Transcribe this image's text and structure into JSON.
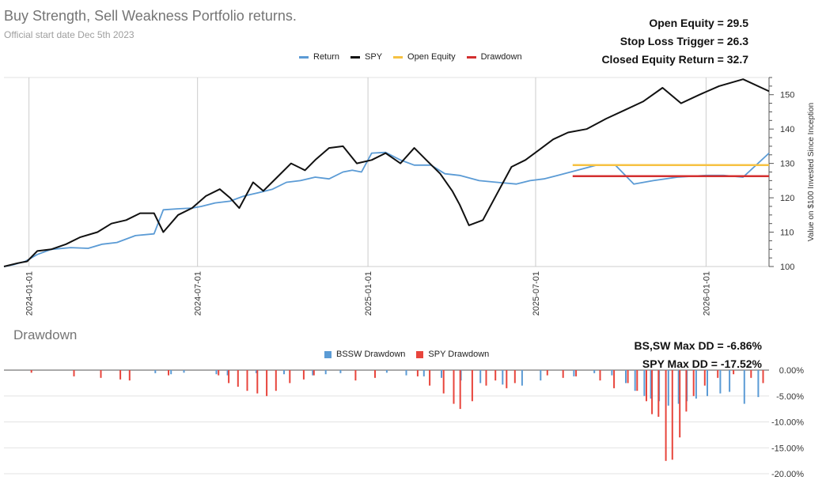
{
  "header": {
    "title": "Buy Strength, Sell Weakness Portfolio returns.",
    "subtitle": "Official start date Dec 5th 2023"
  },
  "stats": {
    "open_equity_label": "Open Equity =",
    "open_equity_value": "29.5",
    "stop_loss_label": "Stop Loss Trigger =",
    "stop_loss_value": "26.3",
    "closed_equity_label": "Closed Equity Return =",
    "closed_equity_value": "32.7"
  },
  "drawdown_panel": {
    "title": "Drawdown",
    "bssw_max_label": "BS,SW Max DD =",
    "bssw_max_value": "-6.86%",
    "spy_max_label": "SPY Max DD =",
    "spy_max_value": "-17.52%"
  },
  "colors": {
    "return": "#5b9bd5",
    "spy": "#111111",
    "open_equity": "#f6c242",
    "drawdown_line": "#d32f2f",
    "bssw_bar": "#5b9bd5",
    "spy_bar": "#e8453c",
    "grid": "#cccccc"
  },
  "chart_data": [
    {
      "type": "line",
      "ylabel": "Value on $100 Invested Since Inception",
      "ylim": [
        100,
        155
      ],
      "yticks": [
        100,
        110,
        120,
        130,
        140,
        150
      ],
      "xlim": [
        "2023-12-05",
        "2026-03-10"
      ],
      "xticks": [
        "2024-01-01",
        "2024-07-01",
        "2025-01-01",
        "2025-07-01",
        "2026-01-01"
      ],
      "legend_position": "top-center",
      "legend": [
        "Return",
        "SPY",
        "Open Equity",
        "Drawdown"
      ],
      "series": [
        {
          "name": "Return",
          "color_key": "return",
          "points": [
            [
              "2023-12-05",
              100
            ],
            [
              "2023-12-15",
              100.5
            ],
            [
              "2023-12-28",
              101.5
            ],
            [
              "2024-01-10",
              103.5
            ],
            [
              "2024-01-25",
              105
            ],
            [
              "2024-02-15",
              105.5
            ],
            [
              "2024-03-05",
              105.3
            ],
            [
              "2024-03-20",
              106.5
            ],
            [
              "2024-04-05",
              107
            ],
            [
              "2024-04-25",
              109
            ],
            [
              "2024-05-15",
              109.5
            ],
            [
              "2024-05-25",
              116.5
            ],
            [
              "2024-06-10",
              116.8
            ],
            [
              "2024-06-25",
              117
            ],
            [
              "2024-07-05",
              117.5
            ],
            [
              "2024-07-20",
              118.5
            ],
            [
              "2024-08-05",
              119
            ],
            [
              "2024-08-20",
              120.5
            ],
            [
              "2024-09-05",
              121.5
            ],
            [
              "2024-09-20",
              122.5
            ],
            [
              "2024-10-05",
              124.5
            ],
            [
              "2024-10-20",
              125
            ],
            [
              "2024-11-05",
              126
            ],
            [
              "2024-11-20",
              125.5
            ],
            [
              "2024-12-05",
              127.5
            ],
            [
              "2024-12-15",
              128
            ],
            [
              "2024-12-25",
              127.5
            ],
            [
              "2025-01-05",
              133
            ],
            [
              "2025-01-20",
              133.2
            ],
            [
              "2025-02-05",
              131
            ],
            [
              "2025-02-20",
              129.5
            ],
            [
              "2025-03-10",
              129.5
            ],
            [
              "2025-03-25",
              127
            ],
            [
              "2025-04-10",
              126.5
            ],
            [
              "2025-05-01",
              125
            ],
            [
              "2025-05-20",
              124.5
            ],
            [
              "2025-06-10",
              124
            ],
            [
              "2025-06-25",
              125
            ],
            [
              "2025-07-10",
              125.5
            ],
            [
              "2025-07-25",
              126.5
            ],
            [
              "2025-08-15",
              128
            ],
            [
              "2025-09-05",
              129.5
            ],
            [
              "2025-09-25",
              129.5
            ],
            [
              "2025-10-15",
              124
            ],
            [
              "2025-11-05",
              125
            ],
            [
              "2025-12-01",
              126
            ],
            [
              "2026-01-01",
              126.5
            ],
            [
              "2026-01-20",
              126.5
            ],
            [
              "2026-02-10",
              126
            ],
            [
              "2026-03-10",
              133
            ]
          ]
        },
        {
          "name": "SPY",
          "color_key": "spy",
          "points": [
            [
              "2023-12-05",
              100
            ],
            [
              "2023-12-20",
              101
            ],
            [
              "2023-12-30",
              101.5
            ],
            [
              "2024-01-10",
              104.5
            ],
            [
              "2024-01-25",
              105
            ],
            [
              "2024-02-10",
              106.5
            ],
            [
              "2024-02-25",
              108.5
            ],
            [
              "2024-03-15",
              110
            ],
            [
              "2024-03-30",
              112.5
            ],
            [
              "2024-04-15",
              113.5
            ],
            [
              "2024-04-30",
              115.5
            ],
            [
              "2024-05-15",
              115.5
            ],
            [
              "2024-05-25",
              110
            ],
            [
              "2024-06-10",
              115
            ],
            [
              "2024-06-25",
              117
            ],
            [
              "2024-07-10",
              120.5
            ],
            [
              "2024-07-25",
              122.5
            ],
            [
              "2024-08-05",
              120
            ],
            [
              "2024-08-15",
              117
            ],
            [
              "2024-08-30",
              124.5
            ],
            [
              "2024-09-10",
              122
            ],
            [
              "2024-09-25",
              126
            ],
            [
              "2024-10-10",
              130
            ],
            [
              "2024-10-25",
              128
            ],
            [
              "2024-11-05",
              131
            ],
            [
              "2024-11-20",
              134.5
            ],
            [
              "2024-12-05",
              135
            ],
            [
              "2024-12-20",
              130
            ],
            [
              "2025-01-05",
              131
            ],
            [
              "2025-01-20",
              133
            ],
            [
              "2025-02-05",
              130
            ],
            [
              "2025-02-20",
              134.5
            ],
            [
              "2025-03-05",
              131
            ],
            [
              "2025-03-20",
              127
            ],
            [
              "2025-04-02",
              122
            ],
            [
              "2025-04-10",
              118
            ],
            [
              "2025-04-20",
              112
            ],
            [
              "2025-05-05",
              113.5
            ],
            [
              "2025-05-20",
              121
            ],
            [
              "2025-06-05",
              129
            ],
            [
              "2025-06-20",
              131
            ],
            [
              "2025-07-05",
              134
            ],
            [
              "2025-07-20",
              137
            ],
            [
              "2025-08-05",
              139
            ],
            [
              "2025-08-25",
              140
            ],
            [
              "2025-09-15",
              143
            ],
            [
              "2025-10-05",
              145.5
            ],
            [
              "2025-10-25",
              148
            ],
            [
              "2025-11-15",
              152
            ],
            [
              "2025-12-05",
              147.5
            ],
            [
              "2025-12-25",
              150
            ],
            [
              "2026-01-15",
              152.5
            ],
            [
              "2026-02-10",
              154.5
            ],
            [
              "2026-03-10",
              151
            ]
          ]
        },
        {
          "name": "Open Equity",
          "color_key": "open_equity",
          "points": [
            [
              "2025-08-10",
              129.5
            ],
            [
              "2026-03-10",
              129.5
            ]
          ]
        },
        {
          "name": "Drawdown",
          "color_key": "drawdown_line",
          "points": [
            [
              "2025-08-10",
              126.3
            ],
            [
              "2026-03-10",
              126.3
            ]
          ]
        }
      ]
    },
    {
      "type": "bar",
      "ylim": [
        -20,
        0
      ],
      "yticks": [
        "0.00%",
        "-5.00%",
        "-10.00%",
        "-15.00%",
        "-20.00%"
      ],
      "legend_position": "top-center",
      "legend": [
        "BSSW Drawdown",
        "SPY Drawdown"
      ],
      "series": [
        {
          "name": "BSSW Drawdown",
          "color_key": "bssw_bar",
          "points": [
            [
              "2024-05-15",
              -0.6
            ],
            [
              "2024-06-01",
              -0.8
            ],
            [
              "2024-06-15",
              -0.5
            ],
            [
              "2024-07-20",
              -0.8
            ],
            [
              "2024-08-01",
              -1
            ],
            [
              "2024-09-01",
              -0.6
            ],
            [
              "2024-10-01",
              -0.8
            ],
            [
              "2024-11-01",
              -1
            ],
            [
              "2024-11-15",
              -0.8
            ],
            [
              "2024-12-01",
              -0.6
            ],
            [
              "2025-01-20",
              -0.5
            ],
            [
              "2025-02-10",
              -1
            ],
            [
              "2025-03-01",
              -1.2
            ],
            [
              "2025-03-20",
              -1.5
            ],
            [
              "2025-04-10",
              -2
            ],
            [
              "2025-05-01",
              -2.5
            ],
            [
              "2025-05-25",
              -2.8
            ],
            [
              "2025-06-15",
              -3
            ],
            [
              "2025-07-05",
              -2
            ],
            [
              "2025-08-10",
              -1.2
            ],
            [
              "2025-09-01",
              -0.6
            ],
            [
              "2025-09-20",
              -1
            ],
            [
              "2025-10-05",
              -2.5
            ],
            [
              "2025-10-15",
              -4
            ],
            [
              "2025-10-25",
              -5
            ],
            [
              "2025-11-01",
              -5.5
            ],
            [
              "2025-11-10",
              -6
            ],
            [
              "2025-11-20",
              -6.86
            ],
            [
              "2025-12-01",
              -6.5
            ],
            [
              "2025-12-10",
              -6
            ],
            [
              "2025-12-20",
              -5.5
            ],
            [
              "2026-01-01",
              -5
            ],
            [
              "2026-01-15",
              -4.5
            ],
            [
              "2026-01-25",
              -4.2
            ],
            [
              "2026-02-10",
              -6.5
            ],
            [
              "2026-02-25",
              -5.2
            ]
          ]
        },
        {
          "name": "SPY Drawdown",
          "color_key": "spy_bar",
          "points": [
            [
              "2024-01-05",
              -0.5
            ],
            [
              "2024-02-20",
              -1.2
            ],
            [
              "2024-03-20",
              -1.5
            ],
            [
              "2024-04-10",
              -1.8
            ],
            [
              "2024-04-20",
              -2
            ],
            [
              "2024-06-01",
              -1
            ],
            [
              "2024-07-25",
              -1
            ],
            [
              "2024-08-05",
              -2.5
            ],
            [
              "2024-08-15",
              -3.2
            ],
            [
              "2024-08-25",
              -4
            ],
            [
              "2024-09-05",
              -4.5
            ],
            [
              "2024-09-15",
              -5
            ],
            [
              "2024-09-25",
              -4
            ],
            [
              "2024-10-10",
              -2.5
            ],
            [
              "2024-10-25",
              -1.8
            ],
            [
              "2024-11-05",
              -1
            ],
            [
              "2024-12-20",
              -2
            ],
            [
              "2025-01-10",
              -1.5
            ],
            [
              "2025-02-25",
              -1.2
            ],
            [
              "2025-03-10",
              -3
            ],
            [
              "2025-03-25",
              -4.5
            ],
            [
              "2025-04-05",
              -6.5
            ],
            [
              "2025-04-12",
              -7.5
            ],
            [
              "2025-04-25",
              -6
            ],
            [
              "2025-05-10",
              -3
            ],
            [
              "2025-05-20",
              -2
            ],
            [
              "2025-06-01",
              -3.5
            ],
            [
              "2025-06-10",
              -2.5
            ],
            [
              "2025-07-15",
              -1
            ],
            [
              "2025-08-01",
              -1.5
            ],
            [
              "2025-08-15",
              -1.2
            ],
            [
              "2025-09-10",
              -2
            ],
            [
              "2025-09-25",
              -3.5
            ],
            [
              "2025-10-10",
              -2.5
            ],
            [
              "2025-10-20",
              -4
            ],
            [
              "2025-10-30",
              -6
            ],
            [
              "2025-11-05",
              -8.5
            ],
            [
              "2025-11-12",
              -9
            ],
            [
              "2025-11-20",
              -17.52
            ],
            [
              "2025-11-27",
              -17.3
            ],
            [
              "2025-12-05",
              -13
            ],
            [
              "2025-12-12",
              -8
            ],
            [
              "2025-12-20",
              -5
            ],
            [
              "2026-01-01",
              -3
            ],
            [
              "2026-01-15",
              -1.5
            ],
            [
              "2026-02-01",
              -0.8
            ],
            [
              "2026-02-20",
              -1.5
            ],
            [
              "2026-03-05",
              -2.5
            ]
          ]
        }
      ]
    }
  ]
}
